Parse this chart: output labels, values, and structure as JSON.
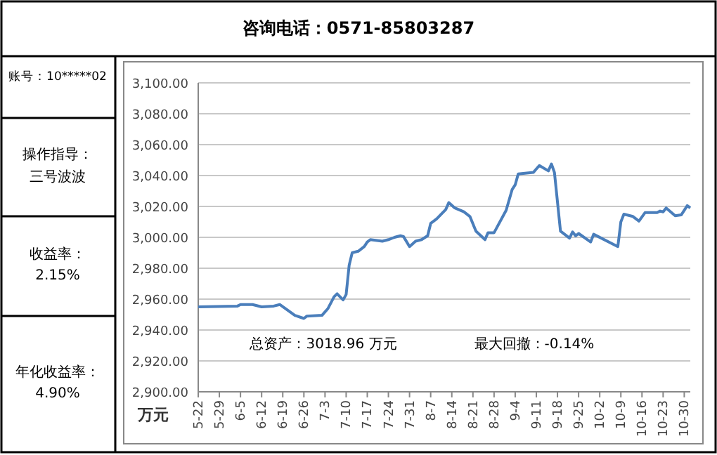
{
  "chart_data": {
    "type": "line",
    "title": "咨询电话：0571-85803287",
    "ylabel": "万元",
    "annotations": [
      "账号：10*****02",
      "操作指导：",
      "三号波波",
      "收益率：",
      "2.15%",
      "年化收益率：",
      "4.90%",
      "总资产：3018.96 万元",
      "最大回撤：-0.14%"
    ],
    "x": [
      "--05-22",
      "--06-04",
      "--06-05",
      "--06-09",
      "--06-12",
      "--06-16",
      "--06-18",
      "--06-23",
      "--06-26",
      "--06-27",
      "--07-02",
      "--07-04",
      "--07-06",
      "--07-07",
      "--07-09",
      "--07-10",
      "--07-11",
      "--07-12",
      "--07-14",
      "--07-16",
      "--07-17",
      "--07-18",
      "--07-22",
      "--07-24",
      "--07-26",
      "--07-28",
      "--07-29",
      "--07-31",
      "--08-02",
      "--08-04",
      "--08-06",
      "--08-07",
      "--08-09",
      "--08-12",
      "--08-13",
      "--08-15",
      "--08-18",
      "--08-20",
      "--08-22",
      "--08-25",
      "--08-26",
      "--08-28",
      "--09-01",
      "--09-03",
      "--09-04",
      "--09-05",
      "--09-10",
      "--09-12",
      "--09-15",
      "--09-16",
      "--09-17",
      "--09-19",
      "--09-22",
      "--09-23",
      "--09-24",
      "--09-25",
      "--09-29",
      "--09-30",
      "--10-08",
      "--10-09",
      "--10-10",
      "--10-13",
      "--10-15",
      "--10-17",
      "--10-21",
      "--10-22",
      "--10-23",
      "--10-24",
      "--10-27",
      "--10-29",
      "--10-31",
      "--11-01"
    ],
    "series": [
      {
        "color": "#4a7ebb",
        "values": [
          2955,
          2955.5,
          2956.5,
          2956.5,
          2955,
          2955.5,
          2956.5,
          2949.5,
          2947.5,
          2949,
          2949.5,
          2954,
          2961.5,
          2963.5,
          2959.5,
          2963,
          2982,
          2990,
          2991,
          2994,
          2997,
          2998.5,
          2997.5,
          2998.5,
          3000,
          3001,
          3000.5,
          2994,
          2997.5,
          2998.5,
          3001,
          3009,
          3012,
          3018,
          3022.5,
          3019,
          3016.5,
          3013.5,
          3004,
          2998.5,
          3003,
          3003,
          3017.5,
          3031,
          3034,
          3041,
          3042,
          3046.5,
          3043,
          3047.5,
          3042,
          3004,
          2999.5,
          3003.5,
          3001,
          3002.5,
          2997,
          3002,
          2994,
          3010,
          3015,
          3013.5,
          3010.5,
          3016,
          3016,
          3017,
          3016.5,
          3019,
          3014,
          3014.5,
          3020.5,
          3019
        ]
      }
    ],
    "xlim": [
      "--05-22",
      "--11-01"
    ],
    "xticks": [
      {
        "value": "--05-22",
        "label": "5-22"
      },
      {
        "value": "--05-29",
        "label": "5-29"
      },
      {
        "value": "--06-05",
        "label": "6-5"
      },
      {
        "value": "--06-12",
        "label": "6-12"
      },
      {
        "value": "--06-19",
        "label": "6-19"
      },
      {
        "value": "--06-26",
        "label": "6-26"
      },
      {
        "value": "--07-03",
        "label": "7-3"
      },
      {
        "value": "--07-10",
        "label": "7-10"
      },
      {
        "value": "--07-17",
        "label": "7-17"
      },
      {
        "value": "--07-24",
        "label": "7-24"
      },
      {
        "value": "--07-31",
        "label": "7-31"
      },
      {
        "value": "--08-07",
        "label": "8-7"
      },
      {
        "value": "--08-14",
        "label": "8-14"
      },
      {
        "value": "--08-21",
        "label": "8-21"
      },
      {
        "value": "--08-28",
        "label": "8-28"
      },
      {
        "value": "--09-04",
        "label": "9-4"
      },
      {
        "value": "--09-11",
        "label": "9-11"
      },
      {
        "value": "--09-18",
        "label": "9-18"
      },
      {
        "value": "--09-25",
        "label": "9-25"
      },
      {
        "value": "--10-02",
        "label": "10-2"
      },
      {
        "value": "--10-09",
        "label": "10-9"
      },
      {
        "value": "--10-16",
        "label": "10-16"
      },
      {
        "value": "--10-23",
        "label": "10-23"
      },
      {
        "value": "--10-30",
        "label": "10-30"
      }
    ],
    "ylim": [
      2900,
      3100
    ],
    "yticks": [
      {
        "value": 2900,
        "label": "2,900.00"
      },
      {
        "value": 2920,
        "label": "2,920.00"
      },
      {
        "value": 2940,
        "label": "2,940.00"
      },
      {
        "value": 2960,
        "label": "2,960.00"
      },
      {
        "value": 2980,
        "label": "2,980.00"
      },
      {
        "value": 3000,
        "label": "3,000.00"
      },
      {
        "value": 3020,
        "label": "3,020.00"
      },
      {
        "value": 3040,
        "label": "3,040.00"
      },
      {
        "value": 3060,
        "label": "3,060.00"
      },
      {
        "value": 3080,
        "label": "3,080.00"
      },
      {
        "value": 3100,
        "label": "3,100.00"
      }
    ],
    "grid": "y"
  }
}
